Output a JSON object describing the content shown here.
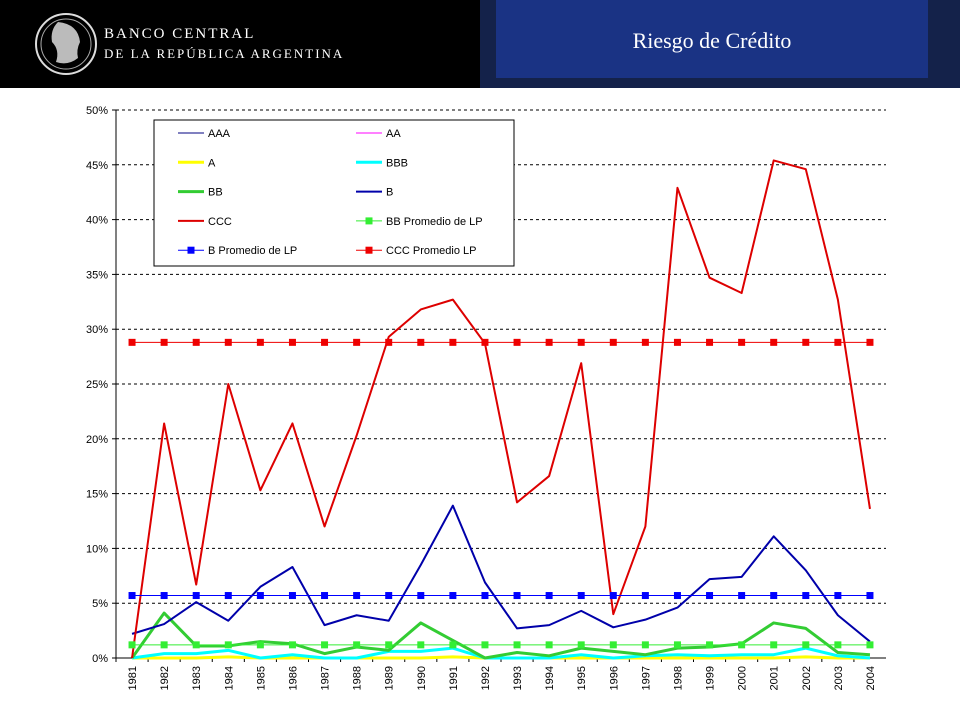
{
  "header": {
    "logo_line1": "BANCO CENTRAL",
    "logo_line2": "DE LA REPÚBLICA ARGENTINA",
    "title": "Riesgo de Crédito"
  },
  "chart_data": {
    "type": "line",
    "categories": [
      "1981",
      "1982",
      "1983",
      "1984",
      "1985",
      "1986",
      "1987",
      "1988",
      "1989",
      "1990",
      "1991",
      "1992",
      "1993",
      "1994",
      "1995",
      "1996",
      "1997",
      "1998",
      "1999",
      "2000",
      "2001",
      "2002",
      "2003",
      "2004"
    ],
    "ylim": [
      0,
      50
    ],
    "yticks": [
      {
        "value": 0,
        "label": "0%"
      },
      {
        "value": 5,
        "label": "5%"
      },
      {
        "value": 10,
        "label": "10%"
      },
      {
        "value": 15,
        "label": "15%"
      },
      {
        "value": 20,
        "label": "20%"
      },
      {
        "value": 25,
        "label": "25%"
      },
      {
        "value": 30,
        "label": "30%"
      },
      {
        "value": 35,
        "label": "35%"
      },
      {
        "value": 40,
        "label": "40%"
      },
      {
        "value": 45,
        "label": "45%"
      },
      {
        "value": 50,
        "label": "50%"
      }
    ],
    "grid": true,
    "legend": "upper left",
    "series": [
      {
        "name": "AAA",
        "color": "#000080",
        "line_width": 1,
        "values": [
          0,
          0,
          0,
          0,
          0,
          0,
          0,
          0,
          0,
          0,
          0,
          0,
          0,
          0,
          0,
          0,
          0,
          0,
          0,
          0,
          0,
          0,
          0,
          0
        ]
      },
      {
        "name": "AA",
        "color": "#ff00ff",
        "line_width": 1,
        "values": [
          0,
          0,
          0,
          0,
          0,
          0,
          0,
          0,
          0,
          0,
          0,
          0,
          0,
          0,
          0,
          0,
          0,
          0,
          0,
          0,
          0,
          0,
          0,
          0
        ]
      },
      {
        "name": "A",
        "color": "#ffff00",
        "line_width": 3,
        "values": [
          0,
          0,
          0,
          0.1,
          0,
          0,
          0,
          0,
          0,
          0,
          0.1,
          0,
          0,
          0,
          0,
          0,
          0,
          0,
          0,
          0,
          0,
          0.1,
          0,
          0
        ]
      },
      {
        "name": "BBB",
        "color": "#00ffff",
        "line_width": 3,
        "values": [
          0,
          0.4,
          0.4,
          0.7,
          0,
          0.3,
          0,
          0,
          0.6,
          0.6,
          0.9,
          0,
          0,
          0,
          0.3,
          0,
          0.2,
          0.3,
          0.2,
          0.3,
          0.3,
          0.9,
          0.2,
          0
        ]
      },
      {
        "name": "BB",
        "color": "#33cc33",
        "line_width": 3,
        "values": [
          0,
          4.1,
          1.1,
          1.1,
          1.5,
          1.3,
          0.4,
          1.0,
          0.7,
          3.2,
          1.6,
          0,
          0.5,
          0.2,
          0.9,
          0.6,
          0.3,
          0.9,
          1.0,
          1.3,
          3.2,
          2.7,
          0.5,
          0.3
        ]
      },
      {
        "name": "B",
        "color": "#0000aa",
        "line_width": 2,
        "values": [
          2.2,
          3.1,
          5.1,
          3.4,
          6.5,
          8.3,
          3.0,
          3.9,
          3.4,
          8.5,
          13.9,
          6.9,
          2.7,
          3.0,
          4.3,
          2.8,
          3.5,
          4.6,
          7.2,
          7.4,
          11.1,
          8.0,
          3.9,
          1.5
        ]
      },
      {
        "name": "CCC",
        "color": "#dd0000",
        "line_width": 2,
        "values": [
          0,
          21.4,
          6.7,
          25,
          15.3,
          21.4,
          12,
          20.3,
          29.3,
          31.8,
          32.7,
          28.7,
          14.2,
          16.6,
          26.9,
          4,
          12,
          42.9,
          34.7,
          33.3,
          45.4,
          44.6,
          32.7,
          13.6
        ]
      },
      {
        "name": "BB Promedio de LP",
        "color": "#33ee33",
        "line_width": 1,
        "marker": "square",
        "values": [
          1.2,
          1.2,
          1.2,
          1.2,
          1.2,
          1.2,
          1.2,
          1.2,
          1.2,
          1.2,
          1.2,
          1.2,
          1.2,
          1.2,
          1.2,
          1.2,
          1.2,
          1.2,
          1.2,
          1.2,
          1.2,
          1.2,
          1.2,
          1.2
        ]
      },
      {
        "name": "B Promedio de LP",
        "color": "#0000ff",
        "line_width": 1,
        "marker": "square",
        "values": [
          5.7,
          5.7,
          5.7,
          5.7,
          5.7,
          5.7,
          5.7,
          5.7,
          5.7,
          5.7,
          5.7,
          5.7,
          5.7,
          5.7,
          5.7,
          5.7,
          5.7,
          5.7,
          5.7,
          5.7,
          5.7,
          5.7,
          5.7,
          5.7
        ]
      },
      {
        "name": "CCC Promedio LP",
        "color": "#ee0000",
        "line_width": 1,
        "marker": "square",
        "values": [
          28.8,
          28.8,
          28.8,
          28.8,
          28.8,
          28.8,
          28.8,
          28.8,
          28.8,
          28.8,
          28.8,
          28.8,
          28.8,
          28.8,
          28.8,
          28.8,
          28.8,
          28.8,
          28.8,
          28.8,
          28.8,
          28.8,
          28.8,
          28.8
        ]
      }
    ]
  }
}
